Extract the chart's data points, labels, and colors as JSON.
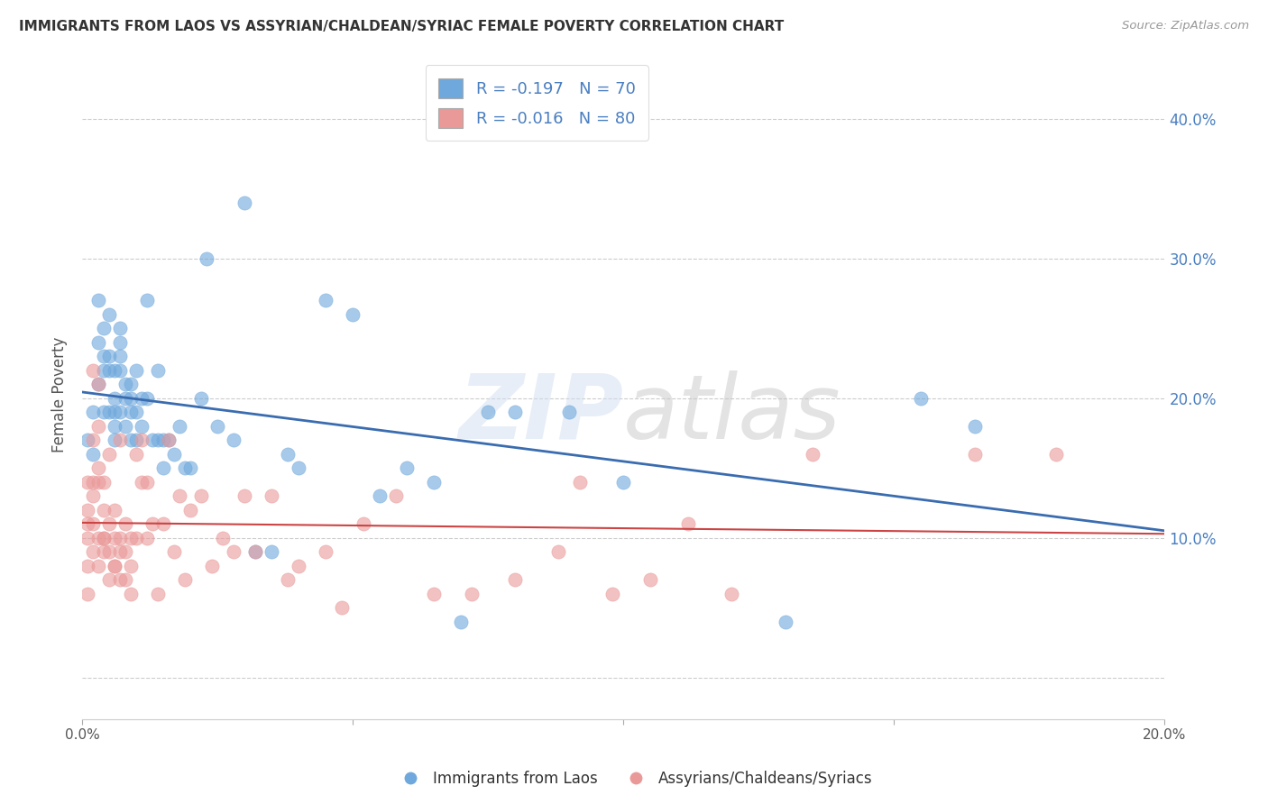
{
  "title": "IMMIGRANTS FROM LAOS VS ASSYRIAN/CHALDEAN/SYRIAC FEMALE POVERTY CORRELATION CHART",
  "source": "Source: ZipAtlas.com",
  "ylabel": "Female Poverty",
  "xlim": [
    0.0,
    0.2
  ],
  "ylim": [
    -0.03,
    0.435
  ],
  "yticks": [
    0.0,
    0.1,
    0.2,
    0.3,
    0.4
  ],
  "ytick_labels_right": [
    "",
    "10.0%",
    "20.0%",
    "30.0%",
    "40.0%"
  ],
  "xticks": [
    0.0,
    0.05,
    0.1,
    0.15,
    0.2
  ],
  "xtick_labels": [
    "0.0%",
    "",
    "",
    "",
    "20.0%"
  ],
  "blue_R": -0.197,
  "blue_N": 70,
  "pink_R": -0.016,
  "pink_N": 80,
  "blue_color": "#6fa8dc",
  "pink_color": "#ea9999",
  "blue_line_color": "#3a6cb0",
  "pink_line_color": "#cc4444",
  "watermark_zip": "ZIP",
  "watermark_atlas": "atlas",
  "background_color": "#ffffff",
  "grid_color": "#cccccc",
  "blue_scatter_x": [
    0.001,
    0.002,
    0.002,
    0.003,
    0.003,
    0.003,
    0.004,
    0.004,
    0.004,
    0.004,
    0.005,
    0.005,
    0.005,
    0.005,
    0.006,
    0.006,
    0.006,
    0.006,
    0.006,
    0.007,
    0.007,
    0.007,
    0.007,
    0.007,
    0.008,
    0.008,
    0.008,
    0.009,
    0.009,
    0.009,
    0.009,
    0.01,
    0.01,
    0.01,
    0.011,
    0.011,
    0.012,
    0.012,
    0.013,
    0.014,
    0.014,
    0.015,
    0.015,
    0.016,
    0.017,
    0.018,
    0.019,
    0.02,
    0.022,
    0.023,
    0.025,
    0.028,
    0.03,
    0.032,
    0.035,
    0.038,
    0.04,
    0.045,
    0.05,
    0.055,
    0.06,
    0.065,
    0.07,
    0.075,
    0.08,
    0.09,
    0.1,
    0.13,
    0.155,
    0.165
  ],
  "blue_scatter_y": [
    0.17,
    0.19,
    0.16,
    0.21,
    0.27,
    0.24,
    0.23,
    0.25,
    0.19,
    0.22,
    0.22,
    0.23,
    0.26,
    0.19,
    0.2,
    0.22,
    0.18,
    0.17,
    0.19,
    0.25,
    0.23,
    0.22,
    0.24,
    0.19,
    0.18,
    0.21,
    0.2,
    0.19,
    0.21,
    0.17,
    0.2,
    0.19,
    0.22,
    0.17,
    0.18,
    0.2,
    0.2,
    0.27,
    0.17,
    0.22,
    0.17,
    0.17,
    0.15,
    0.17,
    0.16,
    0.18,
    0.15,
    0.15,
    0.2,
    0.3,
    0.18,
    0.17,
    0.34,
    0.09,
    0.09,
    0.16,
    0.15,
    0.27,
    0.26,
    0.13,
    0.15,
    0.14,
    0.04,
    0.19,
    0.19,
    0.19,
    0.14,
    0.04,
    0.2,
    0.18
  ],
  "pink_scatter_x": [
    0.001,
    0.001,
    0.001,
    0.001,
    0.001,
    0.001,
    0.002,
    0.002,
    0.002,
    0.002,
    0.002,
    0.002,
    0.003,
    0.003,
    0.003,
    0.003,
    0.003,
    0.003,
    0.004,
    0.004,
    0.004,
    0.004,
    0.004,
    0.005,
    0.005,
    0.005,
    0.005,
    0.006,
    0.006,
    0.006,
    0.006,
    0.007,
    0.007,
    0.007,
    0.007,
    0.008,
    0.008,
    0.008,
    0.009,
    0.009,
    0.009,
    0.01,
    0.01,
    0.011,
    0.011,
    0.012,
    0.012,
    0.013,
    0.014,
    0.015,
    0.016,
    0.017,
    0.018,
    0.019,
    0.02,
    0.022,
    0.024,
    0.026,
    0.028,
    0.03,
    0.032,
    0.035,
    0.038,
    0.04,
    0.045,
    0.048,
    0.052,
    0.058,
    0.065,
    0.072,
    0.08,
    0.088,
    0.092,
    0.098,
    0.105,
    0.112,
    0.12,
    0.135,
    0.165,
    0.18
  ],
  "pink_scatter_y": [
    0.11,
    0.14,
    0.1,
    0.08,
    0.06,
    0.12,
    0.09,
    0.11,
    0.14,
    0.13,
    0.17,
    0.22,
    0.08,
    0.1,
    0.15,
    0.18,
    0.14,
    0.21,
    0.09,
    0.12,
    0.1,
    0.14,
    0.1,
    0.07,
    0.09,
    0.11,
    0.16,
    0.08,
    0.1,
    0.12,
    0.08,
    0.1,
    0.09,
    0.07,
    0.17,
    0.09,
    0.11,
    0.07,
    0.08,
    0.1,
    0.06,
    0.1,
    0.16,
    0.14,
    0.17,
    0.14,
    0.1,
    0.11,
    0.06,
    0.11,
    0.17,
    0.09,
    0.13,
    0.07,
    0.12,
    0.13,
    0.08,
    0.1,
    0.09,
    0.13,
    0.09,
    0.13,
    0.07,
    0.08,
    0.09,
    0.05,
    0.11,
    0.13,
    0.06,
    0.06,
    0.07,
    0.09,
    0.14,
    0.06,
    0.07,
    0.11,
    0.06,
    0.16,
    0.16,
    0.16
  ]
}
